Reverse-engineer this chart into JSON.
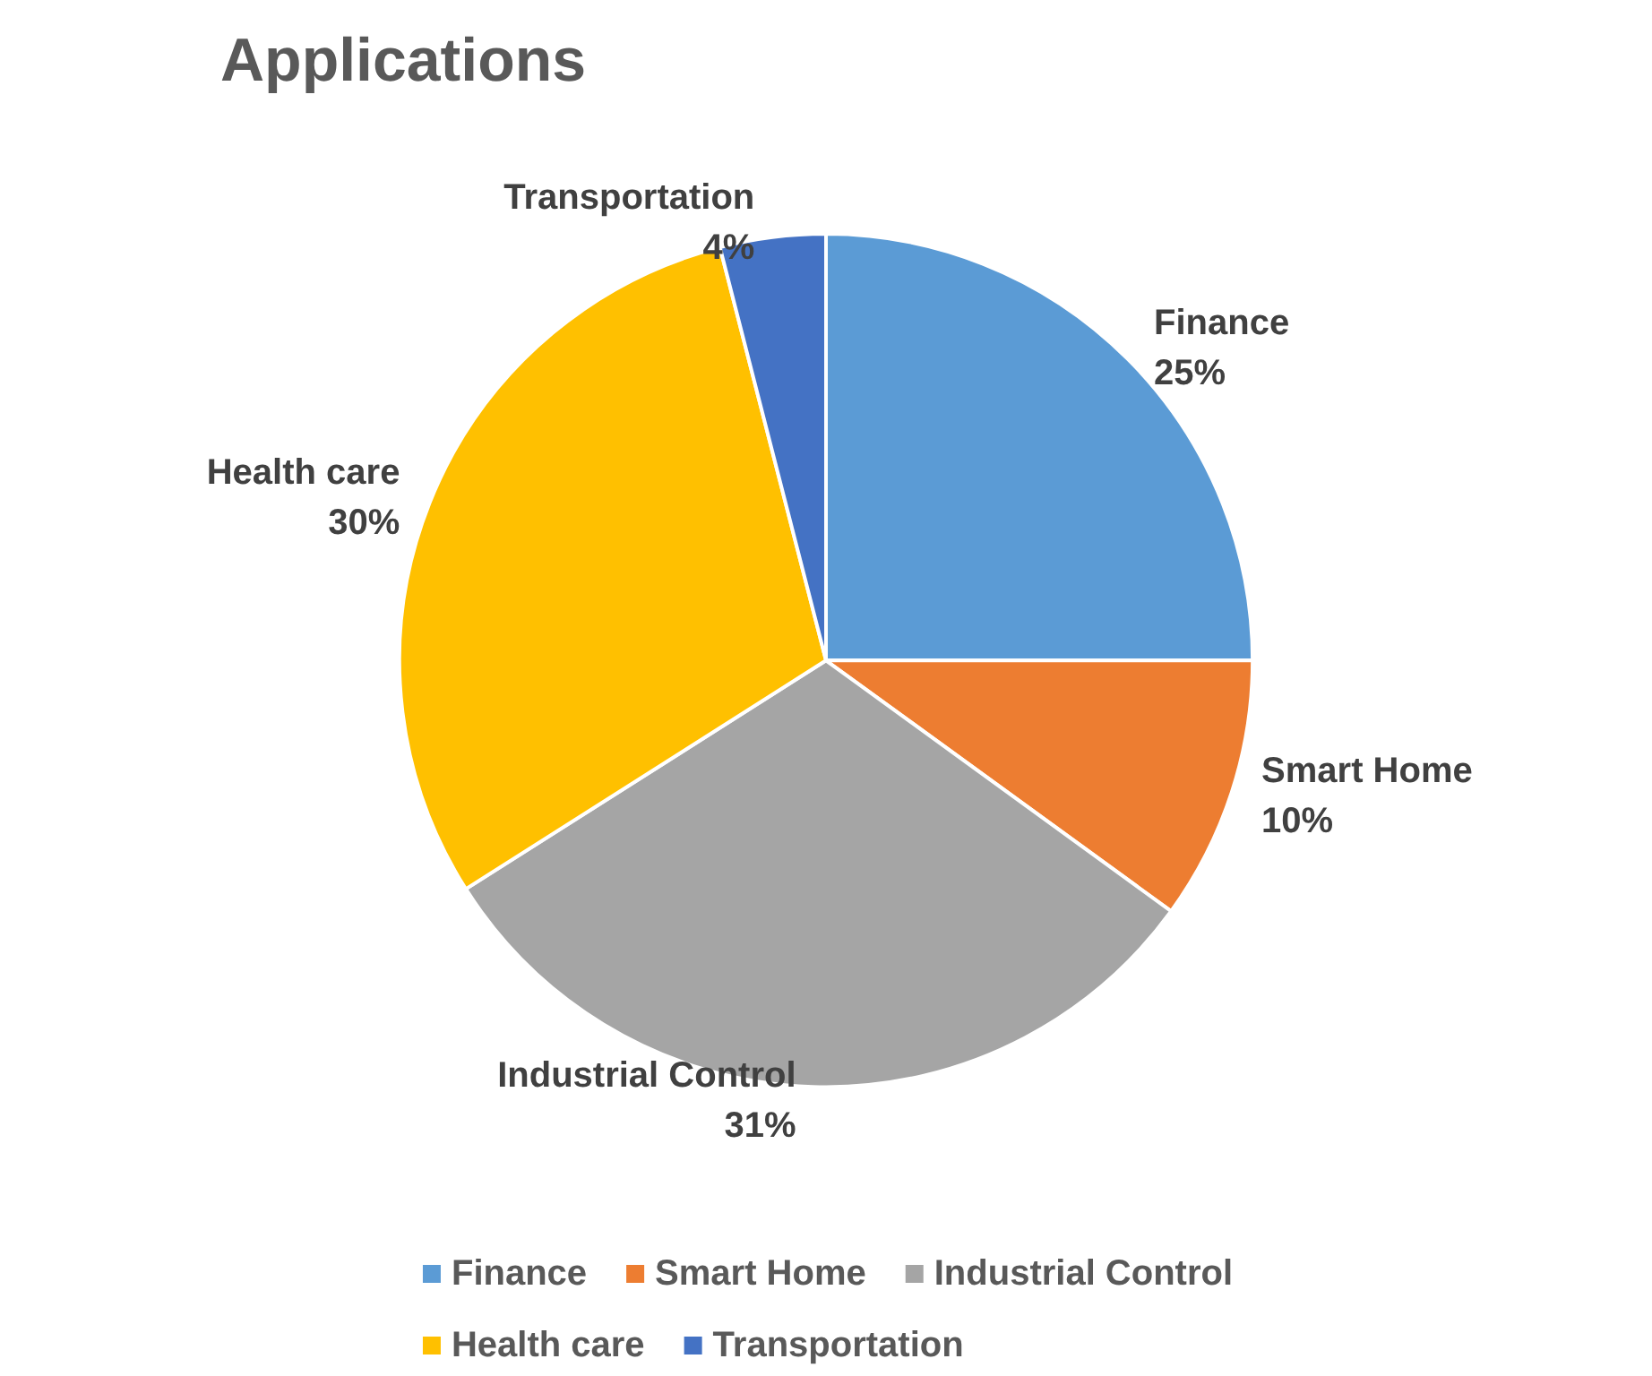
{
  "chart_data": {
    "type": "pie",
    "title": "Applications",
    "categories": [
      "Finance",
      "Smart Home",
      "Industrial Control",
      "Health care",
      "Transportation"
    ],
    "values": [
      25,
      10,
      31,
      30,
      4
    ],
    "value_labels": [
      "25%",
      "10%",
      "31%",
      "30%",
      "4%"
    ],
    "colors": [
      "#5b9bd5",
      "#ed7d31",
      "#a5a5a5",
      "#ffc000",
      "#4472c4"
    ],
    "legend": "bottom"
  }
}
